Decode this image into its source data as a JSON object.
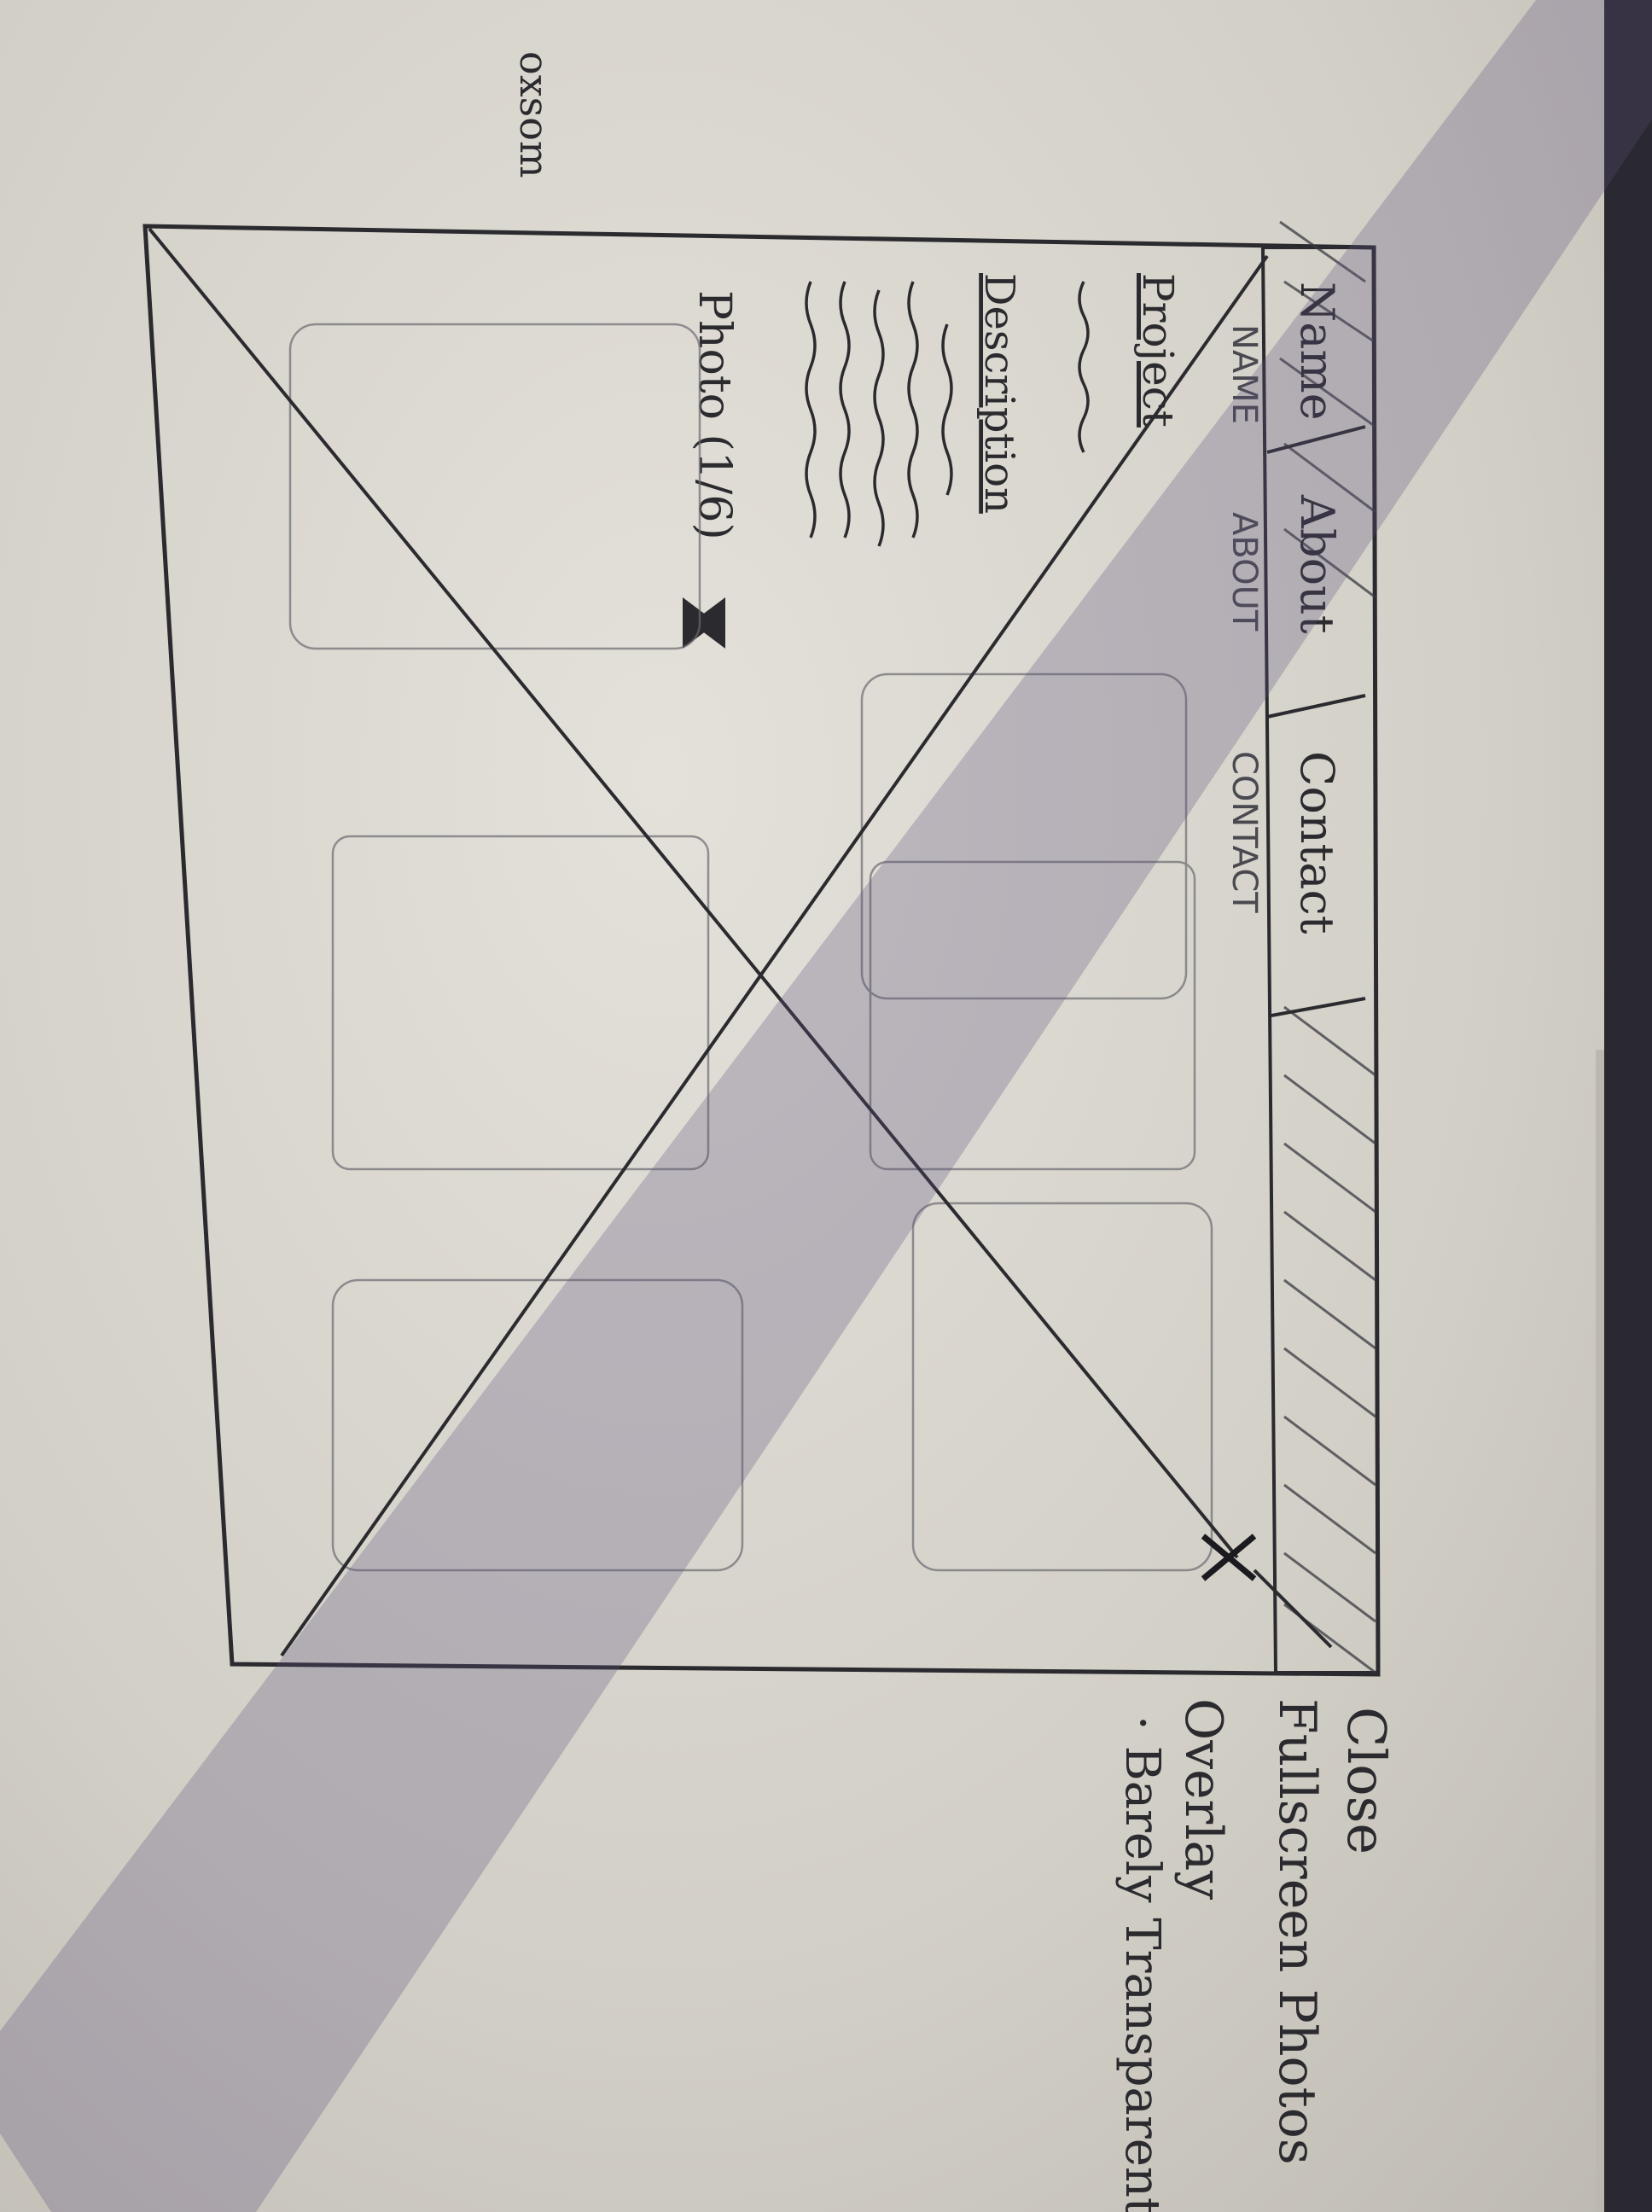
{
  "sketch": {
    "top_left_note": "oxsom",
    "nav": {
      "items": [
        "Name",
        "About",
        "Contact"
      ]
    },
    "subnav": {
      "items": [
        "NAME",
        "ABOUT",
        "CONTACT"
      ]
    },
    "project_label": "Project",
    "description_label": "Description",
    "photo_counter": "Photo (1/6)",
    "annotations": {
      "close": "Close",
      "fullscreen": "Fullscreen Photos",
      "overlay": "Overlay",
      "barely_transparent": "· Barely Transparent"
    }
  },
  "colors": {
    "paper": "#d9d6cf",
    "ink": "#2b2a2e",
    "shadow": "#5b4f7a"
  }
}
